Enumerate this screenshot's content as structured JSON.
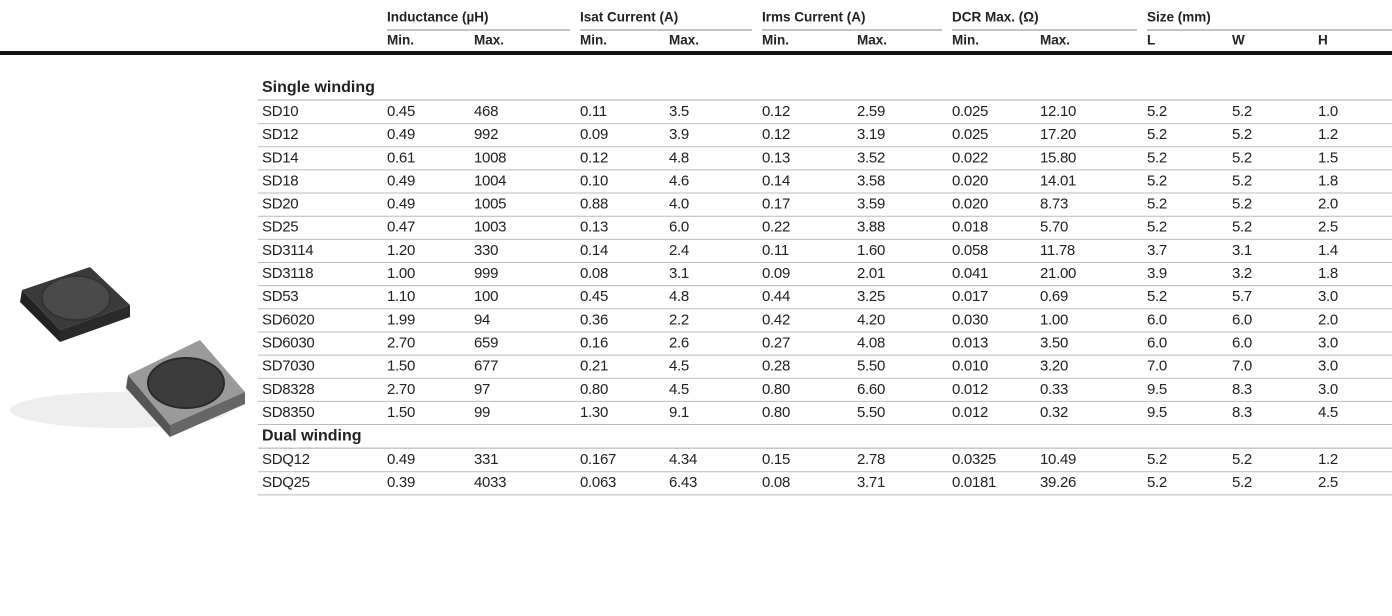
{
  "table": {
    "groups": [
      "Inductance (µH)",
      "Isat Current (A)",
      "Irms Current (A)",
      "DCR Max. (Ω)",
      "Size (mm)"
    ],
    "subheaders": [
      "Min.",
      "Max.",
      "Min.",
      "Max.",
      "Min.",
      "Max.",
      "Min.",
      "Max.",
      "L",
      "W",
      "H"
    ],
    "sections": [
      {
        "title": "Single winding",
        "rows": [
          [
            "SD10",
            "0.45",
            "468",
            "0.11",
            "3.5",
            "0.12",
            "2.59",
            "0.025",
            "12.10",
            "5.2",
            "5.2",
            "1.0"
          ],
          [
            "SD12",
            "0.49",
            "992",
            "0.09",
            "3.9",
            "0.12",
            "3.19",
            "0.025",
            "17.20",
            "5.2",
            "5.2",
            "1.2"
          ],
          [
            "SD14",
            "0.61",
            "1008",
            "0.12",
            "4.8",
            "0.13",
            "3.52",
            "0.022",
            "15.80",
            "5.2",
            "5.2",
            "1.5"
          ],
          [
            "SD18",
            "0.49",
            "1004",
            "0.10",
            "4.6",
            "0.14",
            "3.58",
            "0.020",
            "14.01",
            "5.2",
            "5.2",
            "1.8"
          ],
          [
            "SD20",
            "0.49",
            "1005",
            "0.88",
            "4.0",
            "0.17",
            "3.59",
            "0.020",
            "8.73",
            "5.2",
            "5.2",
            "2.0"
          ],
          [
            "SD25",
            "0.47",
            "1003",
            "0.13",
            "6.0",
            "0.22",
            "3.88",
            "0.018",
            "5.70",
            "5.2",
            "5.2",
            "2.5"
          ],
          [
            "SD3114",
            "1.20",
            "330",
            "0.14",
            "2.4",
            "0.11",
            "1.60",
            "0.058",
            "11.78",
            "3.7",
            "3.1",
            "1.4"
          ],
          [
            "SD3118",
            "1.00",
            "999",
            "0.08",
            "3.1",
            "0.09",
            "2.01",
            "0.041",
            "21.00",
            "3.9",
            "3.2",
            "1.8"
          ],
          [
            "SD53",
            "1.10",
            "100",
            "0.45",
            "4.8",
            "0.44",
            "3.25",
            "0.017",
            "0.69",
            "5.2",
            "5.7",
            "3.0"
          ],
          [
            "SD6020",
            "1.99",
            "94",
            "0.36",
            "2.2",
            "0.42",
            "4.20",
            "0.030",
            "1.00",
            "6.0",
            "6.0",
            "2.0"
          ],
          [
            "SD6030",
            "2.70",
            "659",
            "0.16",
            "2.6",
            "0.27",
            "4.08",
            "0.013",
            "3.50",
            "6.0",
            "6.0",
            "3.0"
          ],
          [
            "SD7030",
            "1.50",
            "677",
            "0.21",
            "4.5",
            "0.28",
            "5.50",
            "0.010",
            "3.20",
            "7.0",
            "7.0",
            "3.0"
          ],
          [
            "SD8328",
            "2.70",
            "97",
            "0.80",
            "4.5",
            "0.80",
            "6.60",
            "0.012",
            "0.33",
            "9.5",
            "8.3",
            "3.0"
          ],
          [
            "SD8350",
            "1.50",
            "99",
            "1.30",
            "9.1",
            "0.80",
            "5.50",
            "0.012",
            "0.32",
            "9.5",
            "8.3",
            "4.5"
          ]
        ]
      },
      {
        "title": "Dual winding",
        "rows": [
          [
            "SDQ12",
            "0.49",
            "331",
            "0.167",
            "4.34",
            "0.15",
            "2.78",
            "0.0325",
            "10.49",
            "5.2",
            "5.2",
            "1.2"
          ],
          [
            "SDQ25",
            "0.39",
            "4033",
            "0.063",
            "6.43",
            "0.08",
            "3.71",
            "0.0181",
            "39.26",
            "5.2",
            "5.2",
            "2.5"
          ]
        ]
      }
    ]
  }
}
